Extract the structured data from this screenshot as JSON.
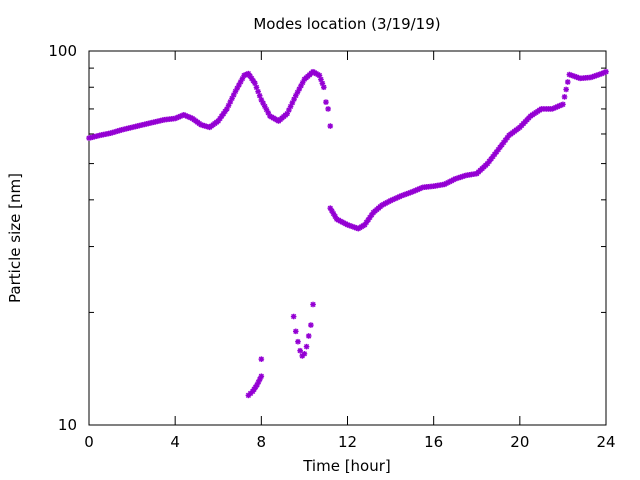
{
  "chart_data": {
    "type": "scatter",
    "title": "Modes location (3/19/19)",
    "xlabel": "Time [hour]",
    "ylabel": "Particle size [nm]",
    "xlim": [
      0,
      24
    ],
    "ylim": [
      10,
      100
    ],
    "yscale": "log",
    "xticks": [
      0,
      4,
      8,
      12,
      16,
      20,
      24
    ],
    "xtick_labels": [
      "0",
      "4",
      "8",
      "12",
      "16",
      "20",
      "24"
    ],
    "yticks": [
      10,
      100
    ],
    "ytick_labels": [
      "10",
      "100"
    ],
    "grid": false,
    "legend": "none",
    "marker": "star",
    "color": "#9400D3",
    "series": [
      {
        "values": [
          [
            0.0,
            58.5
          ],
          [
            0.5,
            59.5
          ],
          [
            1.0,
            60.3
          ],
          [
            1.5,
            61.5
          ],
          [
            2.0,
            62.5
          ],
          [
            2.5,
            63.5
          ],
          [
            3.0,
            64.5
          ],
          [
            3.5,
            65.5
          ],
          [
            4.0,
            66.0
          ],
          [
            4.4,
            67.5
          ],
          [
            4.8,
            66.0
          ],
          [
            5.2,
            63.5
          ],
          [
            5.6,
            62.5
          ],
          [
            6.0,
            65.0
          ],
          [
            6.4,
            70.0
          ],
          [
            6.8,
            78.0
          ],
          [
            7.2,
            86.0
          ],
          [
            7.4,
            87.0
          ],
          [
            7.7,
            82.0
          ],
          [
            8.0,
            74.0
          ],
          [
            8.4,
            67.0
          ],
          [
            8.8,
            65.0
          ],
          [
            9.2,
            68.0
          ],
          [
            9.6,
            76.0
          ],
          [
            10.0,
            84.0
          ],
          [
            10.4,
            88.0
          ],
          [
            10.7,
            86.0
          ],
          [
            10.9,
            80.0
          ],
          [
            11.0,
            73.0
          ],
          [
            11.1,
            70.0
          ],
          [
            11.2,
            63.0
          ],
          [
            11.2,
            38.0
          ],
          [
            11.5,
            35.5
          ],
          [
            12.0,
            34.3
          ],
          [
            12.5,
            33.5
          ],
          [
            12.8,
            34.3
          ],
          [
            13.2,
            37.0
          ],
          [
            13.6,
            38.7
          ],
          [
            14.0,
            39.8
          ],
          [
            14.5,
            41.0
          ],
          [
            15.0,
            42.0
          ],
          [
            15.5,
            43.2
          ],
          [
            16.0,
            43.5
          ],
          [
            16.5,
            44.0
          ],
          [
            17.0,
            45.5
          ],
          [
            17.5,
            46.5
          ],
          [
            18.0,
            47.0
          ],
          [
            18.5,
            50.0
          ],
          [
            19.0,
            54.5
          ],
          [
            19.5,
            59.5
          ],
          [
            20.0,
            62.5
          ],
          [
            20.5,
            67.0
          ],
          [
            21.0,
            70.0
          ],
          [
            21.5,
            70.0
          ],
          [
            22.0,
            72.0
          ],
          [
            22.3,
            86.5
          ],
          [
            22.8,
            84.5
          ],
          [
            23.3,
            85.0
          ],
          [
            23.8,
            87.0
          ],
          [
            24.0,
            88.0
          ]
        ]
      },
      {
        "values": [
          [
            7.4,
            12.0
          ],
          [
            7.6,
            12.3
          ],
          [
            7.8,
            12.8
          ],
          [
            8.0,
            13.5
          ],
          [
            8.0,
            15.0
          ]
        ]
      },
      {
        "values": [
          [
            9.5,
            19.5
          ],
          [
            9.6,
            17.8
          ],
          [
            9.7,
            16.7
          ],
          [
            9.8,
            15.8
          ],
          [
            9.9,
            15.3
          ],
          [
            10.0,
            15.5
          ],
          [
            10.1,
            16.2
          ],
          [
            10.2,
            17.3
          ],
          [
            10.3,
            18.5
          ],
          [
            10.4,
            21.0
          ]
        ]
      }
    ]
  }
}
